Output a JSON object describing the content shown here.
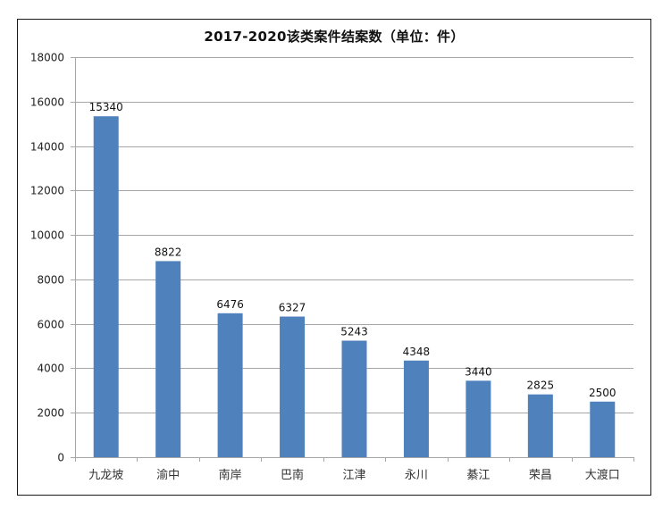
{
  "chart_data": {
    "type": "bar",
    "title": "2017-2020该类案件结案数（单位：件）",
    "xlabel": "",
    "ylabel": "",
    "categories": [
      "九龙坡",
      "渝中",
      "南岸",
      "巴南",
      "江津",
      "永川",
      "綦江",
      "荣昌",
      "大渡口"
    ],
    "values": [
      15340,
      8822,
      6476,
      6327,
      5243,
      4348,
      3440,
      2825,
      2500
    ],
    "data_labels": [
      "15340",
      "8822",
      "6476",
      "6327",
      "5243",
      "4348",
      "3440",
      "2825",
      "2500"
    ],
    "ylim": [
      0,
      18000
    ],
    "yticks": [
      0,
      2000,
      4000,
      6000,
      8000,
      10000,
      12000,
      14000,
      16000,
      18000
    ],
    "grid": true,
    "legend": "none",
    "bar_color": "#4F81BD"
  },
  "colors": {
    "bar": "#4F81BD",
    "grid": "#a6a6a6",
    "frame": "#1a1a1a"
  }
}
